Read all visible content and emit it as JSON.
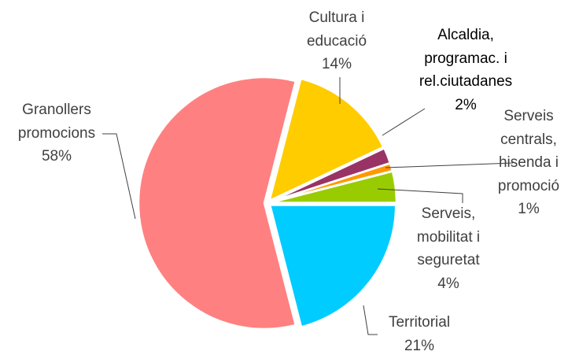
{
  "chart_data": {
    "type": "pie",
    "categories": [
      "Territorial",
      "Granollers\npromocions",
      "Cultura i\neducació",
      "Alcaldia,\nprogramac. i\nrel.ciutadanes",
      "Serveis\ncentrals,\nhisenda i\npromoció",
      "Serveis,\nmobilitat i\nseguretat"
    ],
    "values": [
      21,
      58,
      14,
      2,
      1,
      4
    ],
    "value_labels": [
      "21%",
      "58%",
      "14%",
      "2%",
      "1%",
      "4%"
    ],
    "colors": [
      "#00CCFF",
      "#FF8080",
      "#FFCC00",
      "#993366",
      "#FF9900",
      "#99CC00"
    ]
  }
}
